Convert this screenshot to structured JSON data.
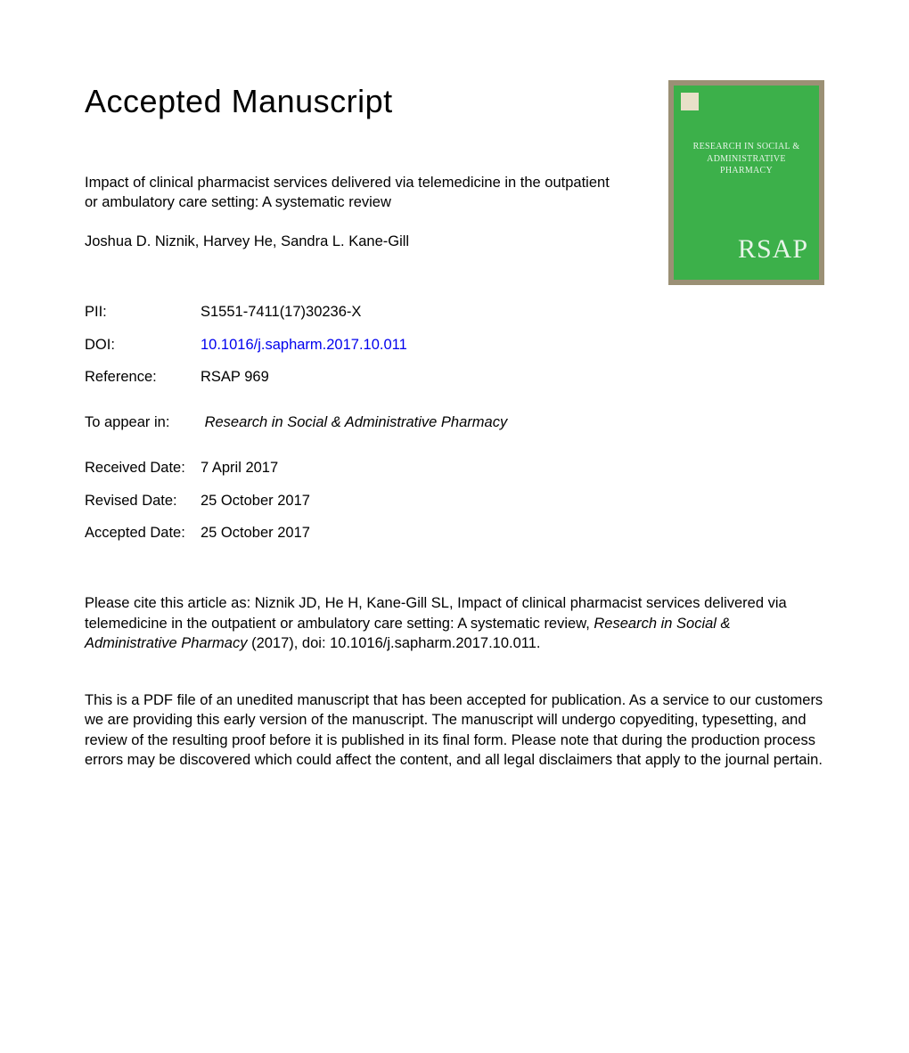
{
  "heading": "Accepted Manuscript",
  "article_title": "Impact of clinical pharmacist services delivered via telemedicine in the outpatient or ambulatory care setting: A systematic review",
  "authors": "Joshua D. Niznik, Harvey He, Sandra L. Kane-Gill",
  "meta": {
    "pii_label": "PII:",
    "pii_value": "S1551-7411(17)30236-X",
    "doi_label": "DOI:",
    "doi_value": "10.1016/j.sapharm.2017.10.011",
    "ref_label": "Reference:",
    "ref_value": "RSAP 969"
  },
  "appear": {
    "label": "To appear in:",
    "value": "Research in Social & Administrative Pharmacy"
  },
  "dates": {
    "received_label": "Received Date:",
    "received_value": "7 April 2017",
    "revised_label": "Revised Date:",
    "revised_value": "25 October 2017",
    "accepted_label": "Accepted Date:",
    "accepted_value": "25 October 2017"
  },
  "citation": {
    "prefix": "Please cite this article as: Niznik JD, He H, Kane-Gill SL, Impact of clinical pharmacist services delivered via telemedicine in the outpatient or ambulatory care setting: A systematic review, ",
    "journal": "Research in Social & Administrative Pharmacy",
    "suffix": " (2017), doi: 10.1016/j.sapharm.2017.10.011."
  },
  "disclaimer": "This is a PDF file of an unedited manuscript that has been accepted for publication. As a service to our customers we are providing this early version of the manuscript. The manuscript will undergo copyediting, typesetting, and review of the resulting proof before it is published in its final form. Please note that during the production process errors may be discovered which could affect the content, and all legal disclaimers that apply to the journal pertain.",
  "cover": {
    "title_line1": "RESEARCH IN SOCIAL &",
    "title_line2": "ADMINISTRATIVE PHARMACY",
    "logo": "RSAP",
    "bg_color": "#3cb04a",
    "border_color": "#9b9075",
    "text_color": "#e8f5e9"
  }
}
